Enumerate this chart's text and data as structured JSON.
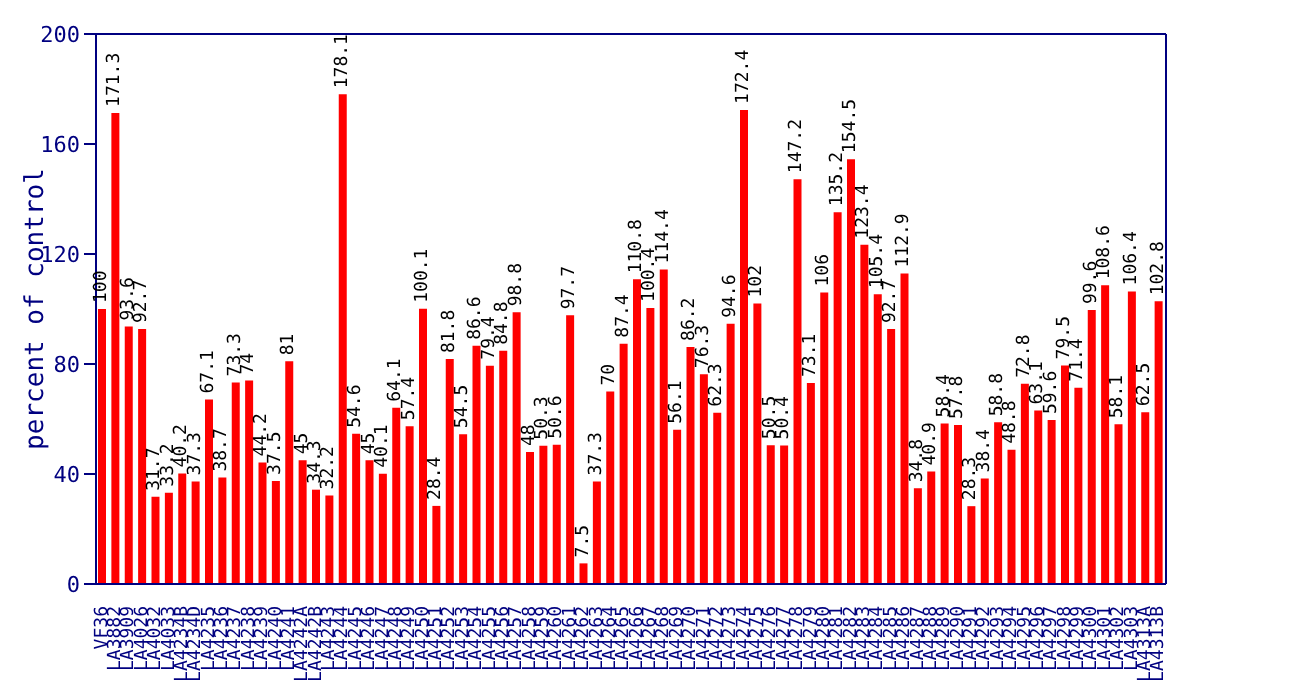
{
  "chart_data": {
    "type": "bar",
    "ylabel": "percent of control",
    "categories": [
      "VF36",
      "LA3882",
      "LA3909",
      "LA4026",
      "LA4032",
      "LA4033",
      "LA4234B",
      "LA4234D",
      "LA4235",
      "LA4236",
      "LA4237",
      "LA4238",
      "LA4239",
      "LA4240",
      "LA4241",
      "LA4242A",
      "LA4242B",
      "LA4243",
      "LA4244",
      "LA4245",
      "LA4246",
      "LA4247",
      "LA4248",
      "LA4249",
      "LA4250",
      "LA4251",
      "LA4252",
      "LA4253",
      "LA4254",
      "LA4255",
      "LA4256",
      "LA4257",
      "LA4258",
      "LA4259",
      "LA4260",
      "LA4261",
      "LA4262",
      "LA4263",
      "LA4264",
      "LA4265",
      "LA4266",
      "LA4267",
      "LA4268",
      "LA4269",
      "LA4270",
      "LA4271",
      "LA4272",
      "LA4273",
      "LA4274",
      "LA4275",
      "LA4276",
      "LA4277",
      "LA4278",
      "LA4279",
      "LA4280",
      "LA4281",
      "LA4282",
      "LA4283",
      "LA4284",
      "LA4285",
      "LA4286",
      "LA4287",
      "LA4288",
      "LA4289",
      "LA4290",
      "LA4291",
      "LA4292",
      "LA4293",
      "LA4294",
      "LA4295",
      "LA4296",
      "LA4297",
      "LA4298",
      "LA4299",
      "LA4300",
      "LA4301",
      "LA4302",
      "LA4303",
      "LA4313A",
      "LA4313B"
    ],
    "values": [
      100,
      171.3,
      93.6,
      92.7,
      31.7,
      33.2,
      40.2,
      37.3,
      67.1,
      38.7,
      73.3,
      74,
      44.2,
      37.5,
      81,
      45,
      34.3,
      32.2,
      178.1,
      54.6,
      45,
      40.1,
      64.1,
      57.4,
      100.1,
      28.4,
      81.8,
      54.5,
      86.6,
      79.4,
      84.8,
      98.8,
      48,
      50.3,
      50.6,
      97.7,
      7.5,
      37.3,
      70,
      87.4,
      110.8,
      100.4,
      114.4,
      56.1,
      86.2,
      76.3,
      62.3,
      94.6,
      172.4,
      102,
      50.5,
      50.4,
      147.2,
      73.1,
      106,
      135.2,
      154.5,
      123.4,
      105.4,
      92.7,
      112.9,
      34.8,
      40.9,
      58.4,
      57.8,
      28.3,
      38.4,
      58.8,
      48.8,
      72.8,
      63.1,
      59.6,
      79.5,
      71.4,
      99.6,
      108.6,
      58.1,
      106.4,
      62.5,
      102.8
    ],
    "color": "#ff0000",
    "data_labels": true,
    "ylim": [
      0,
      200
    ],
    "yticks": [
      0,
      40,
      80,
      120,
      160,
      200
    ],
    "grid": false,
    "legend": false
  }
}
